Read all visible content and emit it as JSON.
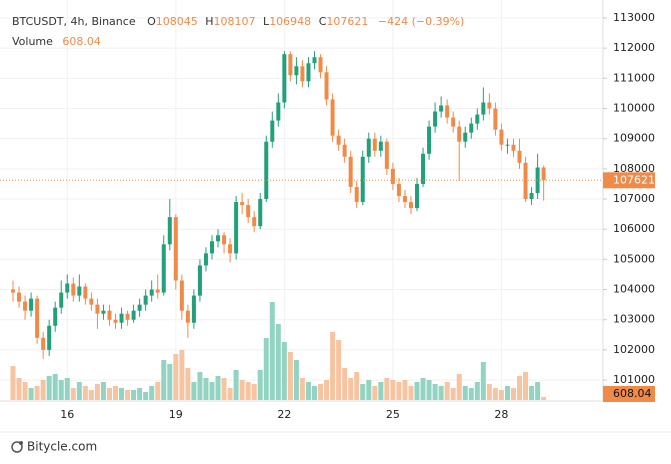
{
  "chart_data": {
    "type": "candlestick",
    "title": "BTCUSDT, 4h, Binance",
    "ohlc_labels": [
      "O",
      "H",
      "L",
      "C"
    ],
    "change_label": "−424 (−0.39%)",
    "volume_label": "Volume",
    "footer": "Bitycle.com",
    "up_color": "#22a079",
    "down_color": "#f08a48",
    "volume_up_color": "#92d3c2",
    "volume_down_color": "#f7c4a2",
    "grid": true,
    "ylim": [
      100340,
      113430
    ],
    "yticks": [
      101000,
      102000,
      103000,
      104000,
      105000,
      106000,
      107000,
      108000,
      109000,
      110000,
      111000,
      112000,
      113000
    ],
    "categories": [
      null,
      null,
      null,
      null,
      null,
      null,
      null,
      null,
      null,
      "16",
      null,
      null,
      null,
      null,
      null,
      null,
      null,
      null,
      null,
      null,
      null,
      null,
      null,
      null,
      null,
      null,
      null,
      "19",
      null,
      null,
      null,
      null,
      null,
      null,
      null,
      null,
      null,
      null,
      null,
      null,
      null,
      null,
      null,
      null,
      null,
      "22",
      null,
      null,
      null,
      null,
      null,
      null,
      null,
      null,
      null,
      null,
      null,
      null,
      null,
      null,
      null,
      null,
      null,
      "25",
      null,
      null,
      null,
      null,
      null,
      null,
      null,
      null,
      null,
      null,
      null,
      null,
      null,
      null,
      null,
      null,
      null,
      "28",
      null,
      null,
      null,
      null,
      null,
      null,
      null
    ],
    "open": [
      104000,
      103900,
      103600,
      103300,
      103700,
      102400,
      102000,
      102800,
      103400,
      103900,
      104200,
      103800,
      104100,
      103700,
      103500,
      103200,
      103300,
      103000,
      102900,
      103200,
      103000,
      103300,
      103500,
      103800,
      104000,
      103900,
      105500,
      106400,
      104300,
      103300,
      102900,
      103800,
      104800,
      105200,
      105600,
      105800,
      105500,
      105200,
      106900,
      106800,
      106400,
      106100,
      107000,
      108900,
      109600,
      110200,
      111800,
      111100,
      111400,
      110900,
      111500,
      111700,
      111200,
      110300,
      109100,
      108800,
      108400,
      107400,
      106900,
      108400,
      109000,
      108600,
      108900,
      108000,
      107500,
      107100,
      106900,
      106700,
      107500,
      108500,
      109400,
      109900,
      110100,
      109700,
      109400,
      108900,
      109200,
      109500,
      109800,
      110200,
      110000,
      109300,
      108800,
      108800,
      108600,
      108200,
      107000,
      107200,
      108045
    ],
    "high": [
      104300,
      104100,
      103800,
      103900,
      103800,
      102600,
      103000,
      103600,
      104300,
      104500,
      104400,
      104500,
      104200,
      103900,
      103700,
      103500,
      103500,
      103200,
      103400,
      103300,
      103500,
      103700,
      104000,
      104300,
      104500,
      105800,
      107000,
      106500,
      104500,
      103500,
      104000,
      105000,
      105400,
      105800,
      106000,
      105900,
      105700,
      107100,
      107200,
      107000,
      106600,
      107200,
      109100,
      109900,
      110500,
      111900,
      111900,
      111700,
      111600,
      111700,
      111900,
      111800,
      111400,
      110500,
      109300,
      109000,
      108600,
      107600,
      108600,
      109200,
      109200,
      109100,
      109000,
      108200,
      107700,
      107300,
      107100,
      107700,
      108700,
      109600,
      110200,
      110400,
      110300,
      109900,
      109600,
      109400,
      109700,
      110000,
      110700,
      110500,
      110200,
      109500,
      109000,
      109000,
      109000,
      108400,
      107400,
      108500,
      108107
    ],
    "low": [
      103600,
      103400,
      103000,
      103100,
      102200,
      101700,
      101800,
      102600,
      103200,
      103700,
      103600,
      103600,
      103500,
      103300,
      102700,
      103000,
      102800,
      102700,
      102700,
      102800,
      102900,
      103100,
      103300,
      103600,
      103700,
      103800,
      105300,
      104000,
      103000,
      102400,
      102700,
      103600,
      104600,
      105000,
      105400,
      105200,
      104900,
      105000,
      106500,
      106200,
      105900,
      106000,
      106900,
      108700,
      109400,
      110000,
      110900,
      110800,
      110700,
      110700,
      111300,
      111000,
      110100,
      108900,
      108600,
      108200,
      107200,
      106700,
      106800,
      108200,
      108400,
      108400,
      107800,
      107300,
      106900,
      106700,
      106500,
      106600,
      107400,
      108300,
      109200,
      109700,
      109500,
      109200,
      107600,
      108700,
      109000,
      109300,
      109600,
      109800,
      109100,
      108600,
      108500,
      108400,
      108000,
      106900,
      106800,
      107000,
      106948
    ],
    "close": [
      103900,
      103600,
      103300,
      103700,
      102400,
      102000,
      102800,
      103400,
      103900,
      104200,
      103800,
      104100,
      103700,
      103500,
      103200,
      103300,
      103000,
      102900,
      103200,
      103000,
      103300,
      103500,
      103800,
      104000,
      103900,
      105500,
      106400,
      104300,
      103300,
      102900,
      103800,
      104800,
      105200,
      105600,
      105800,
      105500,
      105200,
      106900,
      106800,
      106400,
      106100,
      107000,
      108900,
      109600,
      110200,
      111800,
      111100,
      111400,
      110900,
      111500,
      111700,
      111200,
      110300,
      109100,
      108800,
      108400,
      107400,
      106900,
      108400,
      109000,
      108600,
      108900,
      108000,
      107500,
      107100,
      106900,
      106700,
      107500,
      108500,
      109400,
      109900,
      110100,
      109700,
      109400,
      108900,
      109200,
      109500,
      109800,
      110200,
      110000,
      109300,
      108800,
      108800,
      108600,
      108200,
      107000,
      107200,
      108045,
      107621
    ],
    "volumes": [
      6800,
      4400,
      3600,
      2400,
      2800,
      4000,
      4800,
      5200,
      4000,
      4400,
      2400,
      3600,
      2800,
      2000,
      3200,
      3600,
      2400,
      2800,
      2400,
      2000,
      2000,
      2400,
      1600,
      2800,
      3600,
      8000,
      7200,
      9200,
      10000,
      6400,
      3600,
      5600,
      4400,
      3600,
      4800,
      4400,
      2400,
      6000,
      4000,
      3600,
      3200,
      6000,
      12400,
      19600,
      15200,
      11600,
      9600,
      8000,
      4400,
      3600,
      2800,
      3200,
      4000,
      13600,
      12000,
      6400,
      4400,
      5600,
      3200,
      4000,
      2800,
      3600,
      4400,
      4000,
      3600,
      4000,
      2800,
      3600,
      4400,
      4000,
      3200,
      2800,
      3600,
      2400,
      5200,
      2800,
      2400,
      3600,
      7600,
      3200,
      2400,
      2000,
      2800,
      2400,
      4800,
      5600,
      2800,
      3600,
      608.04
    ]
  }
}
